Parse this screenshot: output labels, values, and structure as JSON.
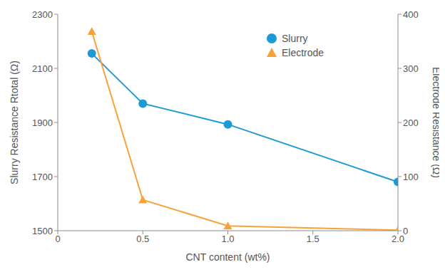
{
  "chart_data": {
    "type": "line",
    "x_label": "CNT content (wt%)",
    "y_label": "Slurry Resistance Rtotal (Ω)",
    "y2_label": "Electrode Resistance (Ω)",
    "xlim": [
      0,
      2
    ],
    "xticks": [
      0,
      0.5,
      {
        "value": 1,
        "label": "1.0"
      },
      1.5,
      {
        "value": 2,
        "label": "2.0"
      }
    ],
    "ylim": [
      1500,
      2300
    ],
    "yticks": [
      1500,
      1700,
      1900,
      2100,
      2300
    ],
    "y2lim": [
      0,
      400
    ],
    "y2ticks": [
      0,
      100,
      200,
      300,
      400
    ],
    "grid": false,
    "legend": "upper right",
    "series": [
      {
        "name": "Slurry",
        "color": "#1b9ad6",
        "marker": "circle",
        "x": [
          0.2,
          0.5,
          1,
          2
        ],
        "values": [
          2155,
          1970,
          1893,
          1680
        ]
      },
      {
        "name": "Electrode",
        "color": "#f7a239",
        "marker": "triangle",
        "axis": "y2",
        "x": [
          0.2,
          0.5,
          1,
          2
        ],
        "values": [
          368,
          57,
          9,
          1
        ]
      }
    ]
  }
}
